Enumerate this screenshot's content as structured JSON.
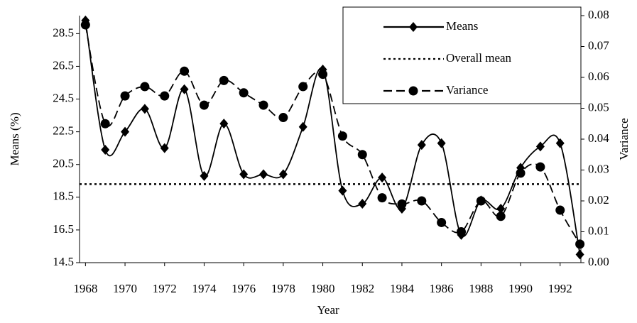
{
  "chart_data": {
    "type": "line",
    "x": [
      1968,
      1969,
      1970,
      1971,
      1972,
      1973,
      1974,
      1975,
      1976,
      1977,
      1978,
      1979,
      1980,
      1981,
      1982,
      1983,
      1984,
      1985,
      1986,
      1987,
      1988,
      1989,
      1990,
      1991,
      1992,
      1993
    ],
    "series": [
      {
        "name": "Means",
        "color": "#000000",
        "marker": "diamond",
        "dash": "solid",
        "axis": "y",
        "values": [
          29.3,
          21.4,
          22.5,
          23.9,
          21.5,
          25.1,
          19.8,
          23.0,
          19.9,
          19.9,
          19.9,
          22.8,
          26.3,
          18.9,
          18.1,
          19.7,
          17.8,
          21.7,
          21.8,
          16.2,
          18.3,
          17.8,
          20.3,
          21.6,
          21.8,
          15.0
        ]
      },
      {
        "name": "Variance",
        "color": "#000000",
        "marker": "circle",
        "dash": "dashed",
        "axis": "y2",
        "values": [
          0.077,
          0.045,
          0.054,
          0.057,
          0.054,
          0.062,
          0.051,
          0.059,
          0.055,
          0.051,
          0.047,
          0.057,
          0.061,
          0.041,
          0.035,
          0.021,
          0.019,
          0.02,
          0.013,
          0.01,
          0.02,
          0.015,
          0.029,
          0.031,
          0.017,
          0.006
        ]
      }
    ],
    "reference_line": {
      "name": "Overall mean",
      "value": 19.3,
      "color": "#000000",
      "dash": "dotted"
    },
    "xlabel": "Year",
    "ylabel": "Means (%)",
    "y2label": "Variance",
    "xlim": [
      1967.7,
      1993.05
    ],
    "xticks": [
      1968,
      1970,
      1972,
      1974,
      1976,
      1978,
      1980,
      1982,
      1984,
      1986,
      1988,
      1990,
      1992
    ],
    "ylim": [
      14.5,
      29.6
    ],
    "yticks": [
      14.5,
      16.5,
      18.5,
      20.5,
      22.5,
      24.5,
      26.5,
      28.5
    ],
    "y2lim": [
      0,
      0.08
    ],
    "y2ticks": [
      {
        "value": 0,
        "label": "0.00"
      },
      0.01,
      0.02,
      0.03,
      0.04,
      0.05,
      0.06,
      0.07,
      0.08
    ],
    "legend": "top-right",
    "smooth": true
  }
}
